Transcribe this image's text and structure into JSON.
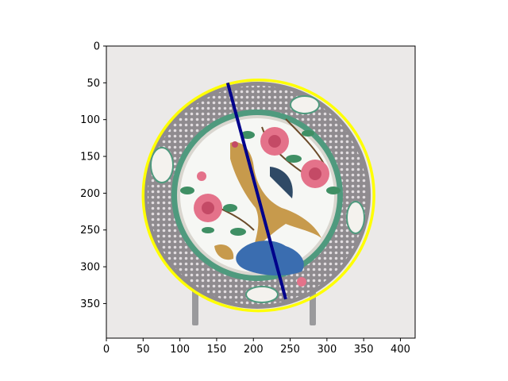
{
  "colors": {
    "background": "#ebe9e8",
    "circle": "#ffff00",
    "line": "#00008b",
    "plate_border": "#8f8b8f",
    "plate_green": "#4f9a7e",
    "plate_center": "#f6f7f4",
    "flower": "#e4728a",
    "leaf": "#3f8f64",
    "bird": "#c79a4c",
    "rock": "#3a6db0",
    "stand": "#9a9a9c"
  },
  "image": {
    "width_units": 420,
    "height_units": 397,
    "description_icon": "porcelain-plate-with-phoenix"
  },
  "axes": {
    "x_ticks": [
      "0",
      "50",
      "100",
      "150",
      "200",
      "250",
      "300",
      "350",
      "400"
    ],
    "y_ticks": [
      "0",
      "50",
      "100",
      "150",
      "200",
      "250",
      "300",
      "350"
    ]
  },
  "overlays": {
    "circle": {
      "cx": 207,
      "cy": 203,
      "r": 157
    },
    "line": {
      "x1": 165,
      "y1": 50,
      "x2": 244,
      "y2": 344
    }
  }
}
